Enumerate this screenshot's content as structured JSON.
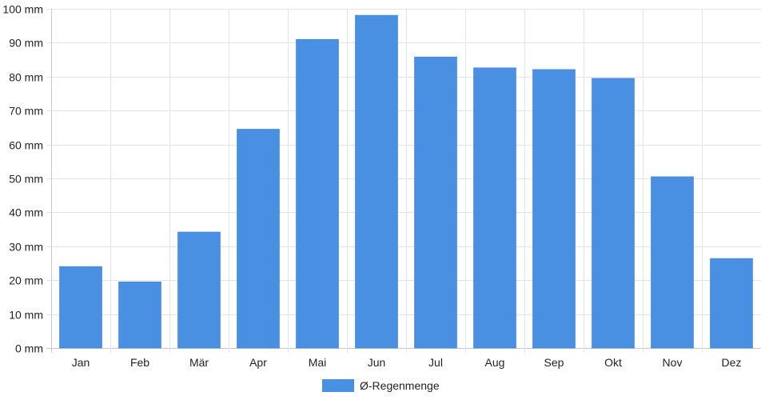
{
  "chart_data": {
    "type": "bar",
    "categories": [
      "Jan",
      "Feb",
      "Mär",
      "Apr",
      "Mai",
      "Jun",
      "Jul",
      "Aug",
      "Sep",
      "Okt",
      "Nov",
      "Dez"
    ],
    "series": [
      {
        "name": "Ø-Regenmenge",
        "color": "#4a90e2",
        "values": [
          24,
          19.5,
          34.2,
          64.5,
          91,
          98.1,
          85.8,
          82.6,
          82.1,
          79.5,
          50.5,
          26.4
        ]
      }
    ],
    "ylim": [
      0,
      100
    ],
    "y_ticks": [
      "0 mm",
      "10 mm",
      "20 mm",
      "30 mm",
      "40 mm",
      "50 mm",
      "60 mm",
      "70 mm",
      "80 mm",
      "90 mm",
      "100 mm"
    ],
    "y_unit": "mm",
    "grid": true,
    "legend_position": "bottom-center"
  }
}
